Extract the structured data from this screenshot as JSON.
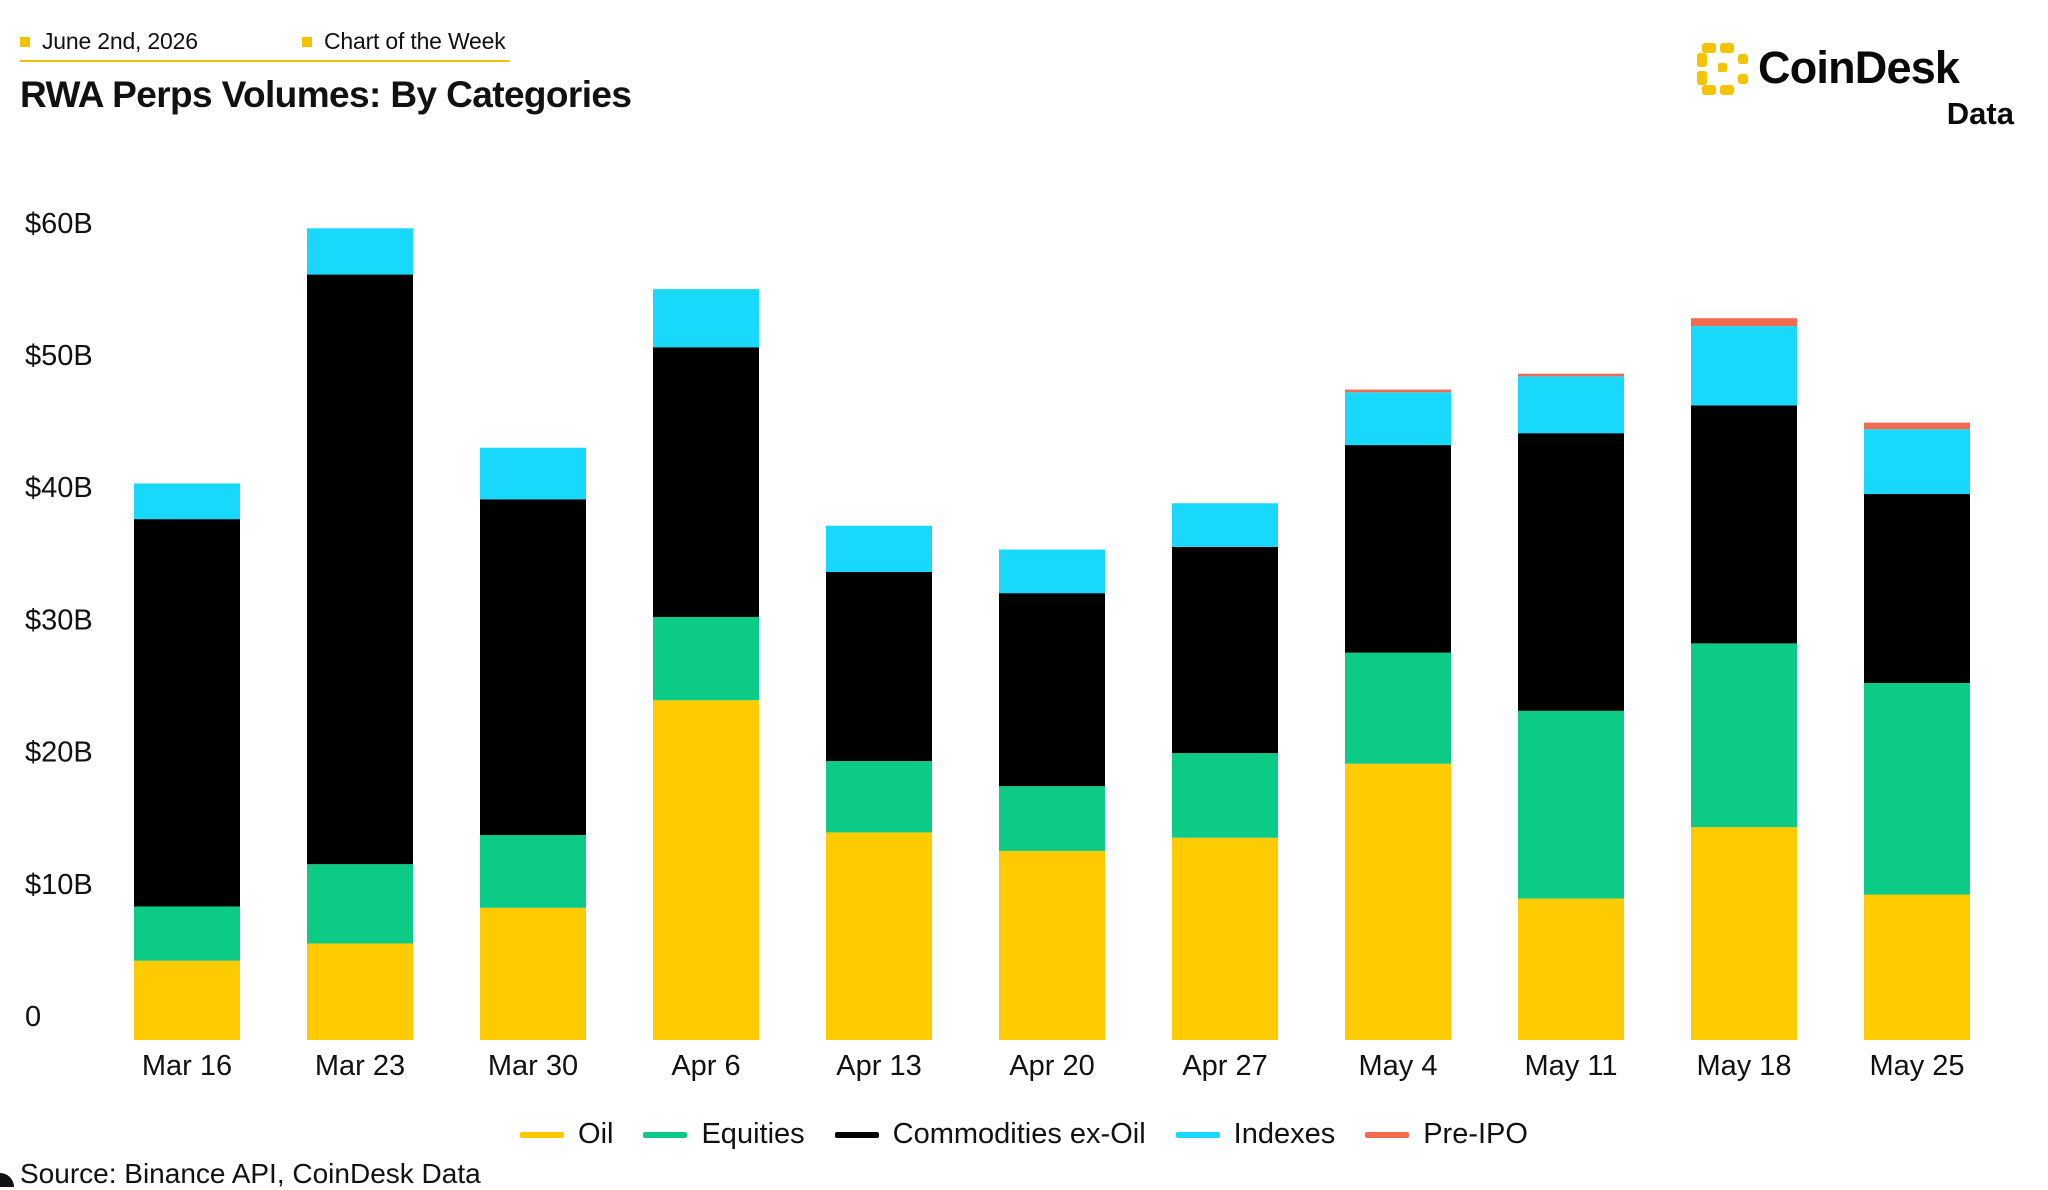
{
  "header": {
    "date": "June 2nd, 2026",
    "series_tag": "Chart of the Week",
    "title": "RWA Perps Volumes: By Categories"
  },
  "logo": {
    "name": "CoinDesk",
    "sub": "Data",
    "mark_color": "#f5c400",
    "mark_icon": "coindesk-logo-icon"
  },
  "source": "Source: Binance API, CoinDesk Data",
  "colors": {
    "Oil": "#fecb00",
    "Equities": "#0ccb86",
    "Commodities ex-Oil": "#000000",
    "Indexes": "#18d8fc",
    "Pre-IPO": "#f26b50"
  },
  "chart_data": {
    "type": "bar",
    "stacked": true,
    "categories": [
      "Mar 16",
      "Mar 23",
      "Mar 30",
      "Apr 6",
      "Apr 13",
      "Apr 20",
      "Apr 27",
      "May 4",
      "May 11",
      "May 18",
      "May 25"
    ],
    "series": [
      {
        "name": "Oil",
        "values": [
          6.0,
          7.3,
          10.0,
          25.7,
          15.7,
          14.3,
          15.3,
          20.9,
          10.7,
          16.1,
          11.0
        ]
      },
      {
        "name": "Equities",
        "values": [
          4.1,
          6.0,
          5.5,
          6.3,
          5.4,
          4.9,
          6.4,
          8.4,
          14.2,
          13.9,
          16.0
        ]
      },
      {
        "name": "Commodities ex-Oil",
        "values": [
          29.3,
          44.6,
          25.4,
          20.4,
          14.3,
          14.6,
          15.6,
          15.7,
          21.0,
          18.0,
          14.3
        ]
      },
      {
        "name": "Indexes",
        "values": [
          2.7,
          3.5,
          3.9,
          4.4,
          3.5,
          3.3,
          3.3,
          4.0,
          4.3,
          6.0,
          4.9
        ]
      },
      {
        "name": "Pre-IPO",
        "values": [
          0,
          0,
          0,
          0,
          0,
          0,
          0,
          0.2,
          0.2,
          0.6,
          0.5
        ]
      }
    ],
    "y_ticks": [
      "0",
      "$10B",
      "$20B",
      "$30B",
      "$40B",
      "$50B",
      "$60B"
    ],
    "ylim": [
      0,
      60
    ],
    "grid": false,
    "legend": "bottom"
  }
}
